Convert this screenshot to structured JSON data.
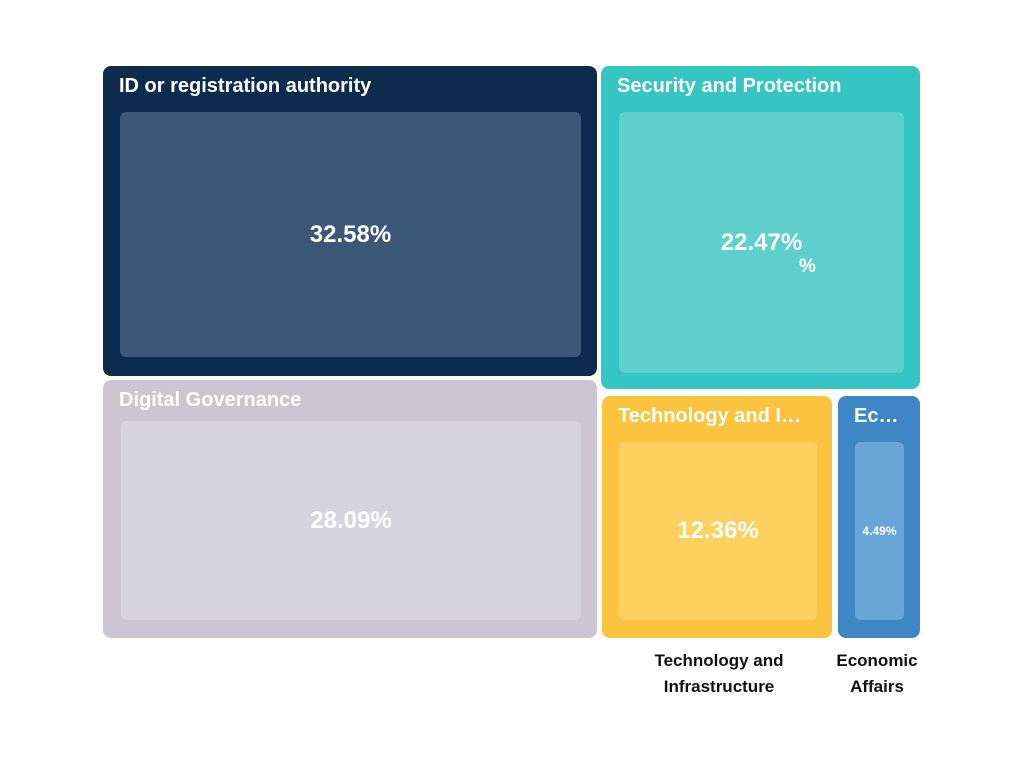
{
  "chart_data": {
    "type": "treemap",
    "unit": "%",
    "background": "#ffffff",
    "tiles": [
      {
        "id": "id-or-registration-authority",
        "title_label": "ID or registration authority",
        "value": 32.58,
        "value_label": "32.58%",
        "color": "#0d2b4d",
        "inner_color": "#3b5878"
      },
      {
        "id": "security-and-protection",
        "title_label": "Security and Protection",
        "value": 22.47,
        "value_label": "22.47%",
        "extra_label": "%",
        "color": "#35c5c3",
        "inner_color": "#5ecfcd"
      },
      {
        "id": "digital-governance",
        "title_label": "Digital Governance",
        "value": 28.09,
        "value_label": "28.09%",
        "color": "#cac7d3",
        "inner_color": "#d6d4de"
      },
      {
        "id": "technology-and-infrastructure",
        "title_label": "Technology and I…",
        "full_name": "Technology and Infrastructure",
        "value": 12.36,
        "value_label": "12.36%",
        "color": "#fbc440",
        "inner_color": "#fdd05f"
      },
      {
        "id": "economic-affairs",
        "title_label": "Ec…",
        "full_name": "Economic Affairs",
        "value": 4.49,
        "value_label": "4.49%",
        "color": "#3f86c5",
        "inner_color": "#6aa5d8"
      }
    ],
    "axis_labels": [
      {
        "text": "Technology and\nInfrastructure"
      },
      {
        "text": "Economic\nAffairs"
      }
    ]
  }
}
